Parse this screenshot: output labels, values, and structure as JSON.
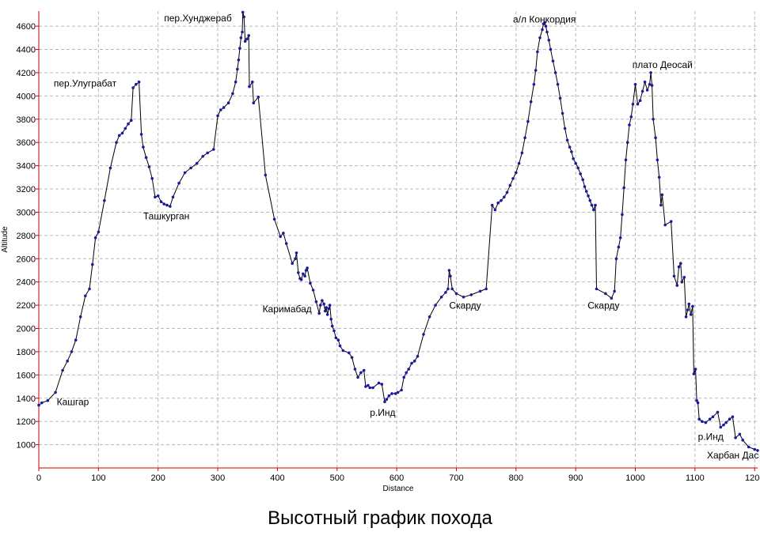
{
  "caption": "Высотный график похода",
  "colors": {
    "line": "#000000",
    "marker": "#1a1aa0",
    "axis": "#cc0000",
    "grid": "#b8b8b8"
  },
  "chart_data": {
    "type": "line",
    "title": "",
    "xlabel": "Distance",
    "ylabel": "Altitude",
    "xlim": [
      0,
      1205
    ],
    "ylim": [
      800,
      4730
    ],
    "xticks": [
      0,
      100,
      200,
      300,
      400,
      500,
      600,
      700,
      800,
      900,
      1000,
      1100,
      1200
    ],
    "yticks": [
      1000,
      1200,
      1400,
      1600,
      1800,
      2000,
      2200,
      2400,
      2600,
      2800,
      3000,
      3200,
      3400,
      3600,
      3800,
      4000,
      4200,
      4400,
      4600
    ],
    "grid": true,
    "series": [
      {
        "name": "",
        "points": [
          [
            0,
            1340
          ],
          [
            5,
            1360
          ],
          [
            15,
            1380
          ],
          [
            28,
            1450
          ],
          [
            40,
            1640
          ],
          [
            48,
            1720
          ],
          [
            55,
            1800
          ],
          [
            62,
            1900
          ],
          [
            70,
            2100
          ],
          [
            78,
            2280
          ],
          [
            85,
            2340
          ],
          [
            90,
            2550
          ],
          [
            95,
            2780
          ],
          [
            100,
            2830
          ],
          [
            110,
            3100
          ],
          [
            120,
            3380
          ],
          [
            130,
            3600
          ],
          [
            135,
            3660
          ],
          [
            140,
            3680
          ],
          [
            145,
            3720
          ],
          [
            150,
            3760
          ],
          [
            155,
            3790
          ],
          [
            158,
            4070
          ],
          [
            163,
            4100
          ],
          [
            168,
            4120
          ],
          [
            172,
            3670
          ],
          [
            175,
            3560
          ],
          [
            180,
            3470
          ],
          [
            185,
            3390
          ],
          [
            190,
            3290
          ],
          [
            195,
            3130
          ],
          [
            200,
            3140
          ],
          [
            205,
            3090
          ],
          [
            210,
            3070
          ],
          [
            215,
            3060
          ],
          [
            220,
            3050
          ],
          [
            225,
            3130
          ],
          [
            235,
            3250
          ],
          [
            245,
            3340
          ],
          [
            255,
            3380
          ],
          [
            265,
            3420
          ],
          [
            275,
            3480
          ],
          [
            283,
            3510
          ],
          [
            293,
            3540
          ],
          [
            300,
            3830
          ],
          [
            305,
            3880
          ],
          [
            310,
            3900
          ],
          [
            318,
            3940
          ],
          [
            325,
            4020
          ],
          [
            330,
            4120
          ],
          [
            333,
            4230
          ],
          [
            335,
            4310
          ],
          [
            337,
            4410
          ],
          [
            339,
            4500
          ],
          [
            341,
            4550
          ],
          [
            342,
            4720
          ],
          [
            344,
            4680
          ],
          [
            346,
            4470
          ],
          [
            349,
            4490
          ],
          [
            352,
            4520
          ],
          [
            353,
            4080
          ],
          [
            358,
            4120
          ],
          [
            360,
            3940
          ],
          [
            368,
            3990
          ],
          [
            380,
            3320
          ],
          [
            395,
            2940
          ],
          [
            405,
            2790
          ],
          [
            410,
            2820
          ],
          [
            415,
            2730
          ],
          [
            425,
            2560
          ],
          [
            430,
            2600
          ],
          [
            432,
            2650
          ],
          [
            435,
            2480
          ],
          [
            438,
            2430
          ],
          [
            440,
            2420
          ],
          [
            443,
            2470
          ],
          [
            446,
            2450
          ],
          [
            448,
            2500
          ],
          [
            450,
            2520
          ],
          [
            455,
            2390
          ],
          [
            460,
            2330
          ],
          [
            465,
            2230
          ],
          [
            470,
            2130
          ],
          [
            472,
            2200
          ],
          [
            475,
            2240
          ],
          [
            478,
            2210
          ],
          [
            480,
            2150
          ],
          [
            482,
            2180
          ],
          [
            484,
            2120
          ],
          [
            486,
            2170
          ],
          [
            488,
            2200
          ],
          [
            490,
            2080
          ],
          [
            492,
            2020
          ],
          [
            495,
            1980
          ],
          [
            498,
            1920
          ],
          [
            502,
            1900
          ],
          [
            505,
            1850
          ],
          [
            510,
            1810
          ],
          [
            520,
            1790
          ],
          [
            525,
            1750
          ],
          [
            530,
            1650
          ],
          [
            535,
            1580
          ],
          [
            540,
            1620
          ],
          [
            545,
            1640
          ],
          [
            548,
            1500
          ],
          [
            552,
            1510
          ],
          [
            555,
            1490
          ],
          [
            560,
            1490
          ],
          [
            570,
            1530
          ],
          [
            575,
            1520
          ],
          [
            580,
            1370
          ],
          [
            583,
            1390
          ],
          [
            587,
            1420
          ],
          [
            592,
            1440
          ],
          [
            598,
            1440
          ],
          [
            602,
            1450
          ],
          [
            608,
            1470
          ],
          [
            612,
            1580
          ],
          [
            616,
            1620
          ],
          [
            620,
            1650
          ],
          [
            625,
            1700
          ],
          [
            630,
            1720
          ],
          [
            635,
            1760
          ],
          [
            645,
            1950
          ],
          [
            655,
            2100
          ],
          [
            665,
            2200
          ],
          [
            675,
            2270
          ],
          [
            682,
            2310
          ],
          [
            686,
            2340
          ],
          [
            688,
            2500
          ],
          [
            690,
            2450
          ],
          [
            693,
            2340
          ],
          [
            700,
            2300
          ],
          [
            712,
            2270
          ],
          [
            725,
            2290
          ],
          [
            740,
            2320
          ],
          [
            750,
            2340
          ],
          [
            760,
            3060
          ],
          [
            765,
            3020
          ],
          [
            770,
            3080
          ],
          [
            775,
            3100
          ],
          [
            780,
            3130
          ],
          [
            785,
            3170
          ],
          [
            790,
            3230
          ],
          [
            795,
            3290
          ],
          [
            800,
            3340
          ],
          [
            805,
            3420
          ],
          [
            810,
            3510
          ],
          [
            815,
            3640
          ],
          [
            820,
            3780
          ],
          [
            825,
            3950
          ],
          [
            830,
            4100
          ],
          [
            833,
            4220
          ],
          [
            836,
            4380
          ],
          [
            840,
            4500
          ],
          [
            844,
            4570
          ],
          [
            846,
            4620
          ],
          [
            848,
            4630
          ],
          [
            850,
            4600
          ],
          [
            852,
            4550
          ],
          [
            855,
            4480
          ],
          [
            858,
            4400
          ],
          [
            862,
            4300
          ],
          [
            866,
            4200
          ],
          [
            870,
            4100
          ],
          [
            874,
            3980
          ],
          [
            878,
            3850
          ],
          [
            882,
            3720
          ],
          [
            886,
            3620
          ],
          [
            890,
            3560
          ],
          [
            893,
            3520
          ],
          [
            896,
            3460
          ],
          [
            900,
            3420
          ],
          [
            904,
            3380
          ],
          [
            908,
            3330
          ],
          [
            912,
            3280
          ],
          [
            915,
            3220
          ],
          [
            918,
            3180
          ],
          [
            921,
            3140
          ],
          [
            924,
            3100
          ],
          [
            927,
            3060
          ],
          [
            930,
            3020
          ],
          [
            933,
            3060
          ],
          [
            935,
            2340
          ],
          [
            950,
            2300
          ],
          [
            960,
            2260
          ],
          [
            965,
            2320
          ],
          [
            968,
            2600
          ],
          [
            972,
            2700
          ],
          [
            975,
            2780
          ],
          [
            978,
            2980
          ],
          [
            981,
            3210
          ],
          [
            984,
            3450
          ],
          [
            987,
            3600
          ],
          [
            990,
            3750
          ],
          [
            993,
            3820
          ],
          [
            996,
            3930
          ],
          [
            1000,
            4100
          ],
          [
            1004,
            3930
          ],
          [
            1008,
            3960
          ],
          [
            1012,
            4040
          ],
          [
            1016,
            4120
          ],
          [
            1020,
            4050
          ],
          [
            1024,
            4100
          ],
          [
            1026,
            4200
          ],
          [
            1028,
            4090
          ],
          [
            1030,
            3800
          ],
          [
            1034,
            3640
          ],
          [
            1037,
            3450
          ],
          [
            1040,
            3300
          ],
          [
            1043,
            3060
          ],
          [
            1045,
            3150
          ],
          [
            1050,
            2890
          ],
          [
            1060,
            2920
          ],
          [
            1065,
            2450
          ],
          [
            1070,
            2370
          ],
          [
            1073,
            2530
          ],
          [
            1076,
            2560
          ],
          [
            1078,
            2400
          ],
          [
            1082,
            2440
          ],
          [
            1085,
            2100
          ],
          [
            1088,
            2160
          ],
          [
            1090,
            2210
          ],
          [
            1093,
            2120
          ],
          [
            1096,
            2190
          ],
          [
            1098,
            1610
          ],
          [
            1101,
            1650
          ],
          [
            1103,
            1380
          ],
          [
            1105,
            1360
          ],
          [
            1107,
            1220
          ],
          [
            1112,
            1200
          ],
          [
            1118,
            1190
          ],
          [
            1125,
            1220
          ],
          [
            1130,
            1240
          ],
          [
            1138,
            1280
          ],
          [
            1143,
            1150
          ],
          [
            1148,
            1170
          ],
          [
            1152,
            1190
          ],
          [
            1158,
            1220
          ],
          [
            1163,
            1240
          ],
          [
            1168,
            1060
          ],
          [
            1175,
            1090
          ],
          [
            1180,
            1040
          ],
          [
            1190,
            980
          ],
          [
            1200,
            960
          ],
          [
            1205,
            950
          ]
        ]
      }
    ],
    "annotations": [
      {
        "text": "Кашгар",
        "x": 30,
        "y": 1340
      },
      {
        "text": "пер.Улуграбат",
        "x": 25,
        "y": 4080
      },
      {
        "text": "Ташкурган",
        "x": 175,
        "y": 2940
      },
      {
        "text": "пер.Хунджераб",
        "x": 210,
        "y": 4640
      },
      {
        "text": "Каримабад",
        "x": 375,
        "y": 2140
      },
      {
        "text": "р.Инд",
        "x": 555,
        "y": 1250
      },
      {
        "text": "Скарду",
        "x": 688,
        "y": 2170
      },
      {
        "text": "а/л Конкордия",
        "x": 795,
        "y": 4630
      },
      {
        "text": "Скарду",
        "x": 920,
        "y": 2170
      },
      {
        "text": "плато Деосай",
        "x": 995,
        "y": 4240
      },
      {
        "text": "р.Инд",
        "x": 1105,
        "y": 1040
      },
      {
        "text": "Харбан Дас",
        "x": 1120,
        "y": 880
      }
    ]
  }
}
